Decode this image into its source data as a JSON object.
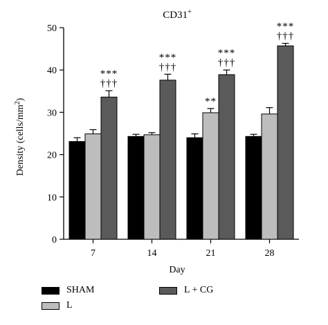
{
  "chart_data": {
    "type": "bar",
    "title_main": "CD31",
    "title_sup": "+",
    "xlabel": "Day",
    "ylabel_main": "Density (cells/mm",
    "ylabel_sup": "2",
    "ylabel_end": ")",
    "categories": [
      "7",
      "14",
      "21",
      "28"
    ],
    "ylim": [
      0,
      50
    ],
    "yticks": [
      "0",
      "10",
      "20",
      "30",
      "40",
      "50"
    ],
    "series": [
      {
        "name": "SHAM",
        "color": "#000000",
        "values": [
          23.1,
          24.3,
          24.0,
          24.3
        ],
        "errors": [
          0.9,
          0.5,
          0.9,
          0.5
        ],
        "marks": [
          "",
          "",
          "",
          ""
        ]
      },
      {
        "name": "L",
        "color": "#bdbdbd",
        "values": [
          24.9,
          24.7,
          29.9,
          29.6
        ],
        "errors": [
          1.0,
          0.5,
          1.0,
          1.5
        ],
        "marks": [
          "",
          "",
          "**",
          ""
        ]
      },
      {
        "name": "L + CG",
        "color": "#5a5a5a",
        "values": [
          33.6,
          37.6,
          38.9,
          45.7
        ],
        "errors": [
          1.5,
          1.4,
          1.1,
          0.6
        ],
        "marks": [
          "***\n†††",
          "***\n†††",
          "***\n†††",
          "***\n†††"
        ]
      }
    ]
  }
}
